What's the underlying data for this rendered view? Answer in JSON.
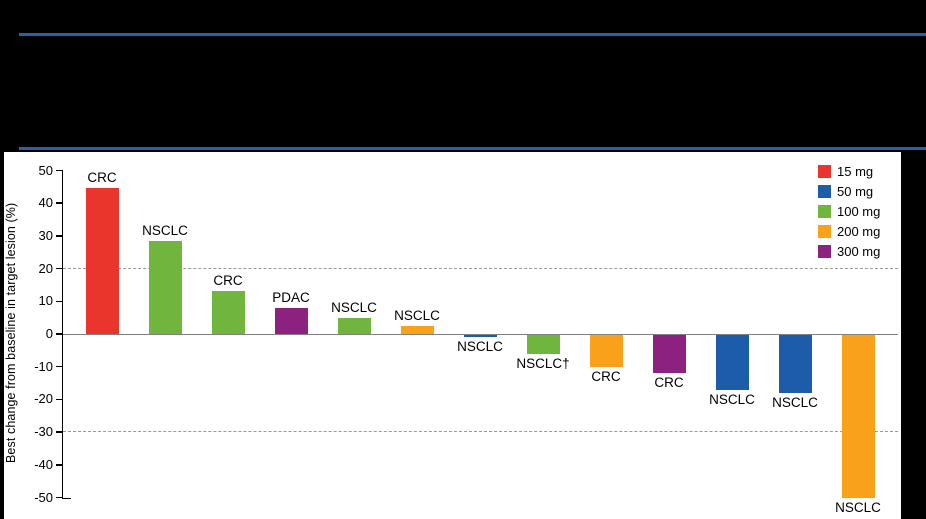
{
  "header": {
    "rule_color": "#2B5FA6"
  },
  "chart_data": {
    "type": "bar",
    "title": "",
    "ylabel": "Best change from baseline in target lesion (%)",
    "ylim": [
      -50,
      50
    ],
    "ytick_interval": 10,
    "ytick_labels": [
      "50",
      "40",
      "30",
      "20",
      "10",
      "0",
      "-10",
      "-20",
      "-30",
      "-40",
      "-50"
    ],
    "dashed_gridlines_at": [
      20,
      -30
    ],
    "legend_position": "top-right",
    "grid": "dashed reference lines only",
    "dose_colors": {
      "15 mg": "#E9352C",
      "50 mg": "#1D5CA9",
      "100 mg": "#6FB53E",
      "200 mg": "#F9A11B",
      "300 mg": "#8C2180"
    },
    "legend": [
      {
        "label": "15 mg",
        "color": "#E9352C"
      },
      {
        "label": "50 mg",
        "color": "#1D5CA9"
      },
      {
        "label": "100 mg",
        "color": "#6FB53E"
      },
      {
        "label": "200 mg",
        "color": "#F9A11B"
      },
      {
        "label": "300 mg",
        "color": "#8C2180"
      }
    ],
    "bars": [
      {
        "label": "CRC",
        "dose": "15 mg",
        "value": 44.5
      },
      {
        "label": "NSCLC",
        "dose": "100 mg",
        "value": 28.5
      },
      {
        "label": "CRC",
        "dose": "100 mg",
        "value": 13
      },
      {
        "label": "PDAC",
        "dose": "300 mg",
        "value": 8
      },
      {
        "label": "NSCLC",
        "dose": "100 mg",
        "value": 5
      },
      {
        "label": "NSCLC",
        "dose": "200 mg",
        "value": 2.5
      },
      {
        "label": "NSCLC",
        "dose": "50 mg",
        "value": -1
      },
      {
        "label": "NSCLC†",
        "dose": "100 mg",
        "value": -6
      },
      {
        "label": "CRC",
        "dose": "200 mg",
        "value": -10
      },
      {
        "label": "CRC",
        "dose": "300 mg",
        "value": -12
      },
      {
        "label": "NSCLC",
        "dose": "50 mg",
        "value": -17
      },
      {
        "label": "NSCLC",
        "dose": "50 mg",
        "value": -18
      },
      {
        "label": "NSCLC",
        "dose": "200 mg",
        "value": -50
      }
    ]
  }
}
